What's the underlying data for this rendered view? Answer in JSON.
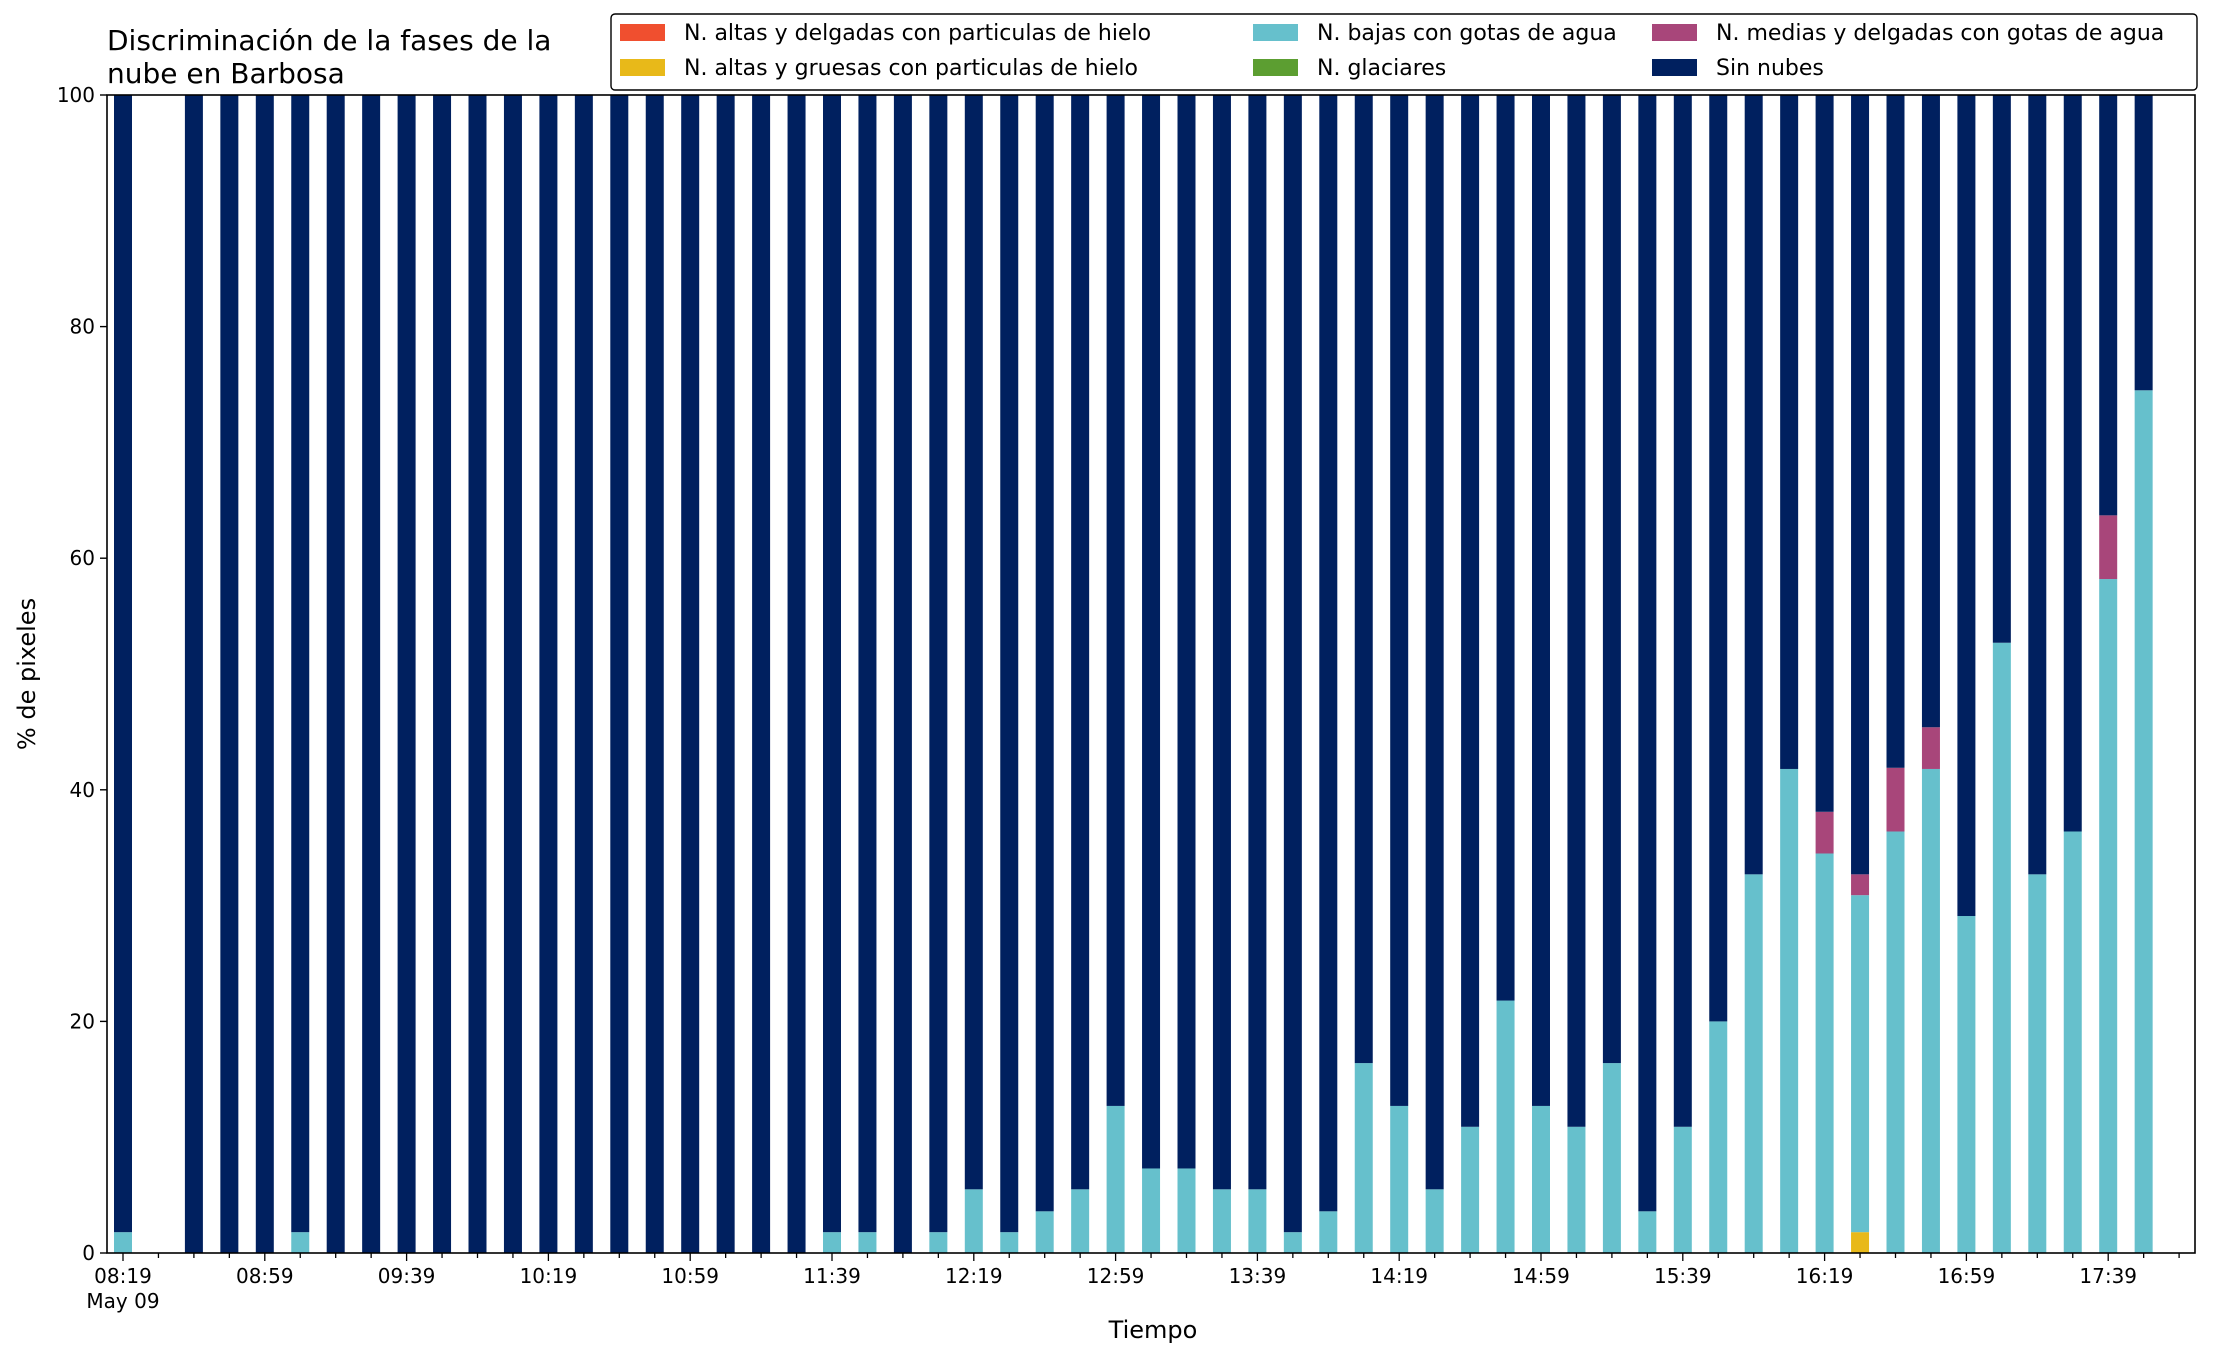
{
  "chart_data": {
    "type": "bar",
    "stacked": true,
    "title_lines": [
      "Discriminación de la fases de la",
      "nube en Barbosa"
    ],
    "xlabel": "Tiempo",
    "ylabel": "% de pixeles",
    "ylim": [
      0,
      100
    ],
    "yticks": [
      "0",
      "20",
      "40",
      "60",
      "80",
      "100"
    ],
    "x_tick_labels": [
      "08:19",
      "08:59",
      "09:39",
      "10:19",
      "10:59",
      "11:39",
      "12:19",
      "12:59",
      "13:39",
      "14:19",
      "14:59",
      "15:39",
      "16:19",
      "16:59",
      "17:39"
    ],
    "x_tick_sublabel": "May 09",
    "grid": false,
    "legend_position": "top-right",
    "legend": [
      {
        "name": "N. altas y delgadas con particulas de hielo",
        "color": "#f04f2f"
      },
      {
        "name": "N. altas y gruesas con particulas de hielo",
        "color": "#e8b919"
      },
      {
        "name": "N. bajas con gotas de agua",
        "color": "#66c0cc"
      },
      {
        "name": "N. glaciares",
        "color": "#5c9e31"
      },
      {
        "name": "N. medias y delgadas con gotas de agua",
        "color": "#a8467a"
      },
      {
        "name": "Sin nubes",
        "color": "#00205f"
      }
    ],
    "categories": [
      "08:19",
      "08:29",
      "08:39",
      "08:49",
      "08:59",
      "09:09",
      "09:19",
      "09:29",
      "09:39",
      "09:49",
      "09:59",
      "10:09",
      "10:19",
      "10:29",
      "10:39",
      "10:49",
      "10:59",
      "11:09",
      "11:19",
      "11:29",
      "11:39",
      "11:49",
      "11:59",
      "12:09",
      "12:19",
      "12:29",
      "12:39",
      "12:49",
      "12:59",
      "13:09",
      "13:19",
      "13:29",
      "13:39",
      "13:49",
      "13:59",
      "14:09",
      "14:19",
      "14:29",
      "14:39",
      "14:49",
      "14:59",
      "15:09",
      "15:19",
      "15:29",
      "15:39",
      "15:49",
      "15:59",
      "16:09",
      "16:19",
      "16:29",
      "16:39",
      "16:49",
      "16:59",
      "17:09",
      "17:19",
      "17:29",
      "17:39",
      "17:49"
    ],
    "present": [
      true,
      false,
      true,
      true,
      true,
      true,
      true,
      true,
      true,
      true,
      true,
      true,
      true,
      true,
      true,
      true,
      true,
      true,
      true,
      true,
      true,
      true,
      true,
      true,
      true,
      true,
      true,
      true,
      true,
      true,
      true,
      true,
      true,
      true,
      true,
      true,
      true,
      true,
      true,
      true,
      true,
      true,
      true,
      true,
      true,
      true,
      true,
      true,
      true,
      true,
      true,
      true,
      true,
      true,
      true,
      true,
      true,
      true
    ],
    "series": [
      {
        "name": "N. altas y delgadas con particulas de hielo",
        "color": "#f04f2f",
        "values": [
          0,
          0,
          0,
          0,
          0,
          0,
          0,
          0,
          0,
          0,
          0,
          0,
          0,
          0,
          0,
          0,
          0,
          0,
          0,
          0,
          0,
          0,
          0,
          0,
          0,
          0,
          0,
          0,
          0,
          0,
          0,
          0,
          0,
          0,
          0,
          0,
          0,
          0,
          0,
          0,
          0,
          0,
          0,
          0,
          0,
          0,
          0,
          0,
          0,
          0,
          0,
          0,
          0,
          0,
          0,
          0,
          0,
          0
        ]
      },
      {
        "name": "N. altas y gruesas con particulas de hielo",
        "color": "#e8b919",
        "values": [
          0,
          0,
          0,
          0,
          0,
          0,
          0,
          0,
          0,
          0,
          0,
          0,
          0,
          0,
          0,
          0,
          0,
          0,
          0,
          0,
          0,
          0,
          0,
          0,
          0,
          0,
          0,
          0,
          0,
          0,
          0,
          0,
          0,
          0,
          0,
          0,
          0,
          0,
          0,
          0,
          0,
          0,
          0,
          0,
          0,
          0,
          0,
          0,
          0,
          1.8,
          0,
          0,
          0,
          0,
          0,
          0,
          0,
          0
        ]
      },
      {
        "name": "N. bajas con gotas de agua",
        "color": "#66c0cc",
        "values": [
          1.8,
          0,
          0,
          0,
          0,
          1.8,
          0,
          0,
          0,
          0,
          0,
          0,
          0,
          0,
          0,
          0,
          0,
          0,
          0,
          0,
          1.8,
          1.8,
          0,
          1.8,
          5.5,
          1.8,
          3.6,
          5.5,
          12.7,
          7.3,
          7.3,
          5.5,
          5.5,
          1.8,
          3.6,
          16.4,
          12.7,
          5.5,
          10.9,
          21.8,
          12.7,
          10.9,
          16.4,
          3.6,
          10.9,
          20.0,
          32.7,
          41.8,
          34.5,
          29.1,
          36.4,
          41.8,
          29.1,
          52.7,
          32.7,
          36.4,
          58.2,
          74.5
        ]
      },
      {
        "name": "N. glaciares",
        "color": "#5c9e31",
        "values": [
          0,
          0,
          0,
          0,
          0,
          0,
          0,
          0,
          0,
          0,
          0,
          0,
          0,
          0,
          0,
          0,
          0,
          0,
          0,
          0,
          0,
          0,
          0,
          0,
          0,
          0,
          0,
          0,
          0,
          0,
          0,
          0,
          0,
          0,
          0,
          0,
          0,
          0,
          0,
          0,
          0,
          0,
          0,
          0,
          0,
          0,
          0,
          0,
          0,
          0,
          0,
          0,
          0,
          0,
          0,
          0,
          0,
          0
        ]
      },
      {
        "name": "N. medias y delgadas con gotas de agua",
        "color": "#a8467a",
        "values": [
          0,
          0,
          0,
          0,
          0,
          0,
          0,
          0,
          0,
          0,
          0,
          0,
          0,
          0,
          0,
          0,
          0,
          0,
          0,
          0,
          0,
          0,
          0,
          0,
          0,
          0,
          0,
          0,
          0,
          0,
          0,
          0,
          0,
          0,
          0,
          0,
          0,
          0,
          0,
          0,
          0,
          0,
          0,
          0,
          0,
          0,
          0,
          0,
          3.6,
          1.8,
          5.5,
          3.6,
          0,
          0,
          0,
          0,
          5.5,
          0
        ]
      },
      {
        "name": "Sin nubes",
        "color": "#00205f",
        "values": [
          98.2,
          0,
          100,
          100,
          100,
          98.2,
          100,
          100,
          100,
          100,
          100,
          100,
          100,
          100,
          100,
          100,
          100,
          100,
          100,
          100,
          98.2,
          98.2,
          100,
          98.2,
          94.5,
          98.2,
          96.4,
          94.5,
          87.3,
          92.7,
          92.7,
          94.5,
          94.5,
          98.2,
          96.4,
          83.6,
          87.3,
          94.5,
          89.1,
          78.2,
          87.3,
          89.1,
          83.6,
          96.4,
          89.1,
          80.0,
          67.3,
          58.2,
          61.9,
          67.3,
          58.1,
          54.6,
          70.9,
          47.3,
          67.3,
          63.6,
          36.3,
          25.5
        ]
      }
    ]
  }
}
